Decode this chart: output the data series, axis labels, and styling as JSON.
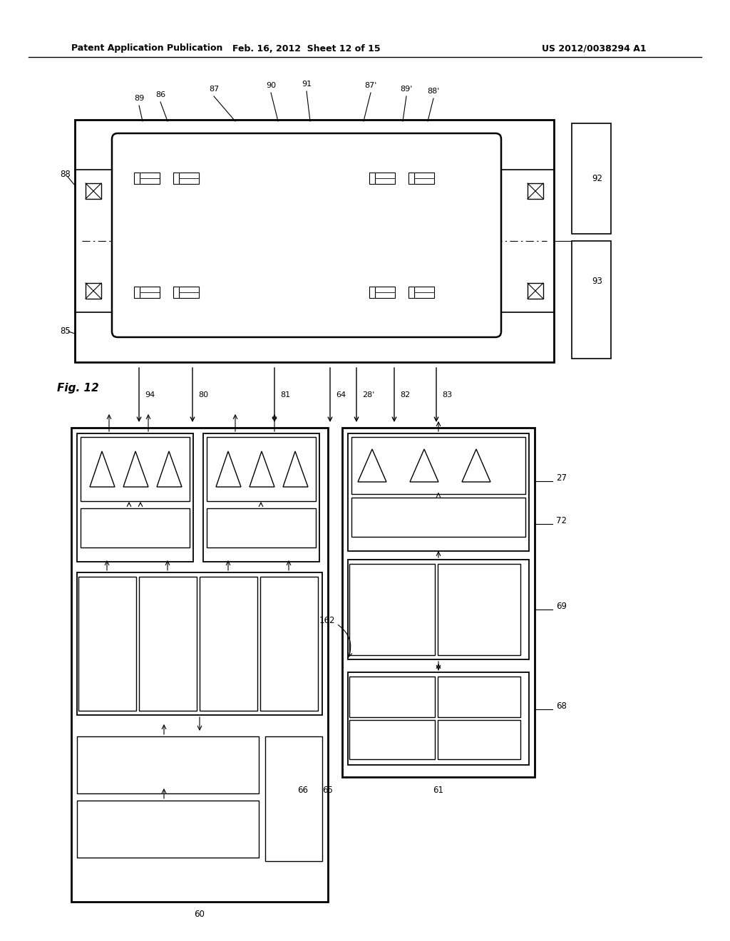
{
  "header_left": "Patent Application Publication",
  "header_mid": "Feb. 16, 2012  Sheet 12 of 15",
  "header_right": "US 2012/0038294 A1",
  "fig_label": "Fig. 12",
  "bg_color": "#ffffff",
  "line_color": "#000000"
}
